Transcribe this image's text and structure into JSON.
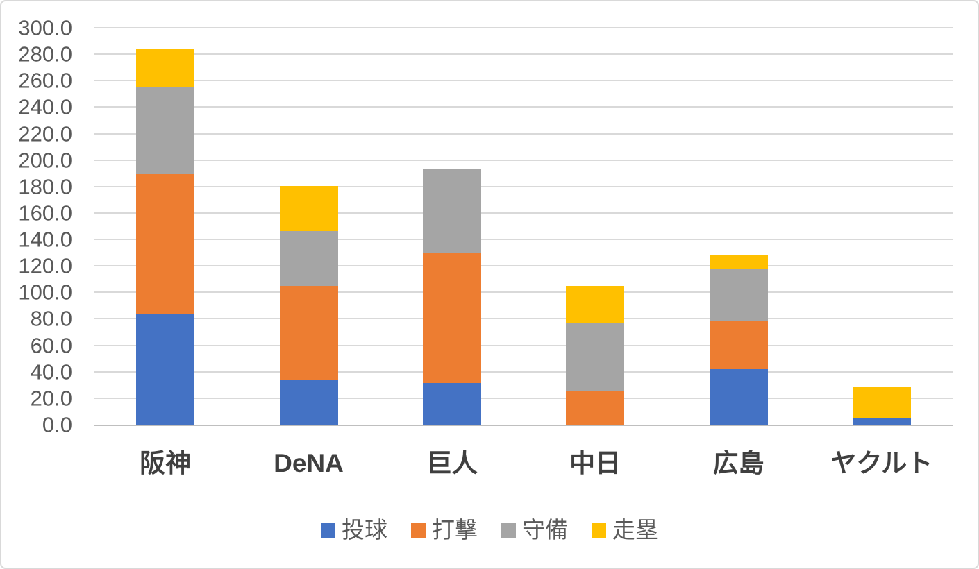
{
  "chart_data": {
    "type": "bar",
    "stacked": true,
    "title": "",
    "xlabel": "",
    "ylabel": "",
    "categories": [
      "阪神",
      "DeNA",
      "巨人",
      "中日",
      "広島",
      "ヤクルト"
    ],
    "series": [
      {
        "name": "投球",
        "color": "#4472C4",
        "values": [
          83.5,
          34.0,
          31.5,
          0.0,
          42.0,
          4.5
        ]
      },
      {
        "name": "打撃",
        "color": "#ED7D31",
        "values": [
          106.0,
          71.0,
          98.5,
          25.0,
          36.5,
          0.0
        ]
      },
      {
        "name": "守備",
        "color": "#A5A5A5",
        "values": [
          66.0,
          41.5,
          63.0,
          51.5,
          39.0,
          0.0
        ]
      },
      {
        "name": "走塁",
        "color": "#FFC000",
        "values": [
          28.5,
          34.0,
          0.0,
          28.5,
          11.0,
          24.5
        ]
      }
    ],
    "stack_totals": [
      284.0,
      180.5,
      193.0,
      105.0,
      128.5,
      29.0
    ],
    "ylim": [
      0,
      300
    ],
    "ytick_step": 20,
    "ytick_decimals": 1,
    "ytick_labels": [
      "0.0",
      "20.0",
      "40.0",
      "60.0",
      "80.0",
      "100.0",
      "120.0",
      "140.0",
      "160.0",
      "180.0",
      "200.0",
      "220.0",
      "240.0",
      "260.0",
      "280.0",
      "300.0"
    ],
    "grid": true,
    "legend_position": "bottom",
    "legend_entries": [
      "投球",
      "打撃",
      "守備",
      "走塁"
    ]
  },
  "colors": {
    "series_blue": "#4472C4",
    "series_orange": "#ED7D31",
    "series_gray": "#A5A5A5",
    "series_yellow": "#FFC000",
    "gridline": "#D9D9D9",
    "axis_line": "#BFBFBF",
    "ytick_text": "#595959",
    "xtick_text": "#3F3F3F",
    "legend_text": "#595959",
    "frame_border": "#D9D9D9",
    "background": "#FFFFFF"
  }
}
